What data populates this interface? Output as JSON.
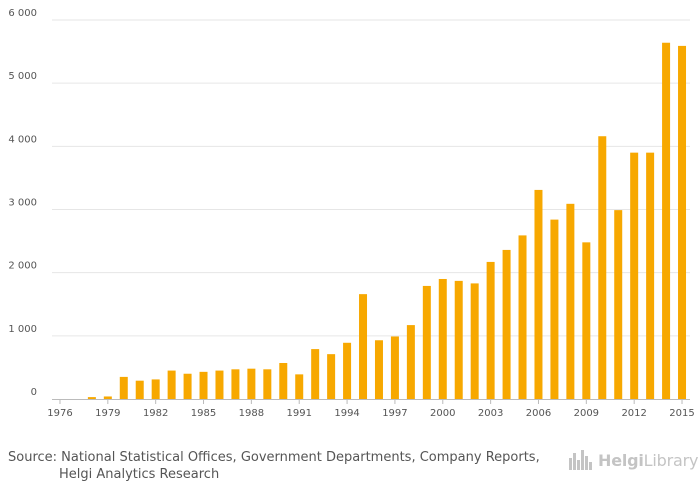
{
  "chart_data": {
    "type": "bar",
    "title": "",
    "xlabel": "",
    "ylabel": "",
    "ylim": [
      0,
      6000
    ],
    "yticks": [
      0,
      1000,
      2000,
      3000,
      4000,
      5000,
      6000
    ],
    "ytick_labels": [
      "0",
      "1 000",
      "2 000",
      "3 000",
      "4 000",
      "5 000",
      "6 000"
    ],
    "xtick_labels": [
      "1976",
      "1979",
      "1982",
      "1985",
      "1988",
      "1991",
      "1994",
      "1997",
      "2000",
      "2003",
      "2006",
      "2009",
      "2012",
      "2015"
    ],
    "grid": true,
    "bar_color": "#f7a800",
    "categories": [
      "1976",
      "1977",
      "1978",
      "1979",
      "1980",
      "1981",
      "1982",
      "1983",
      "1984",
      "1985",
      "1986",
      "1987",
      "1988",
      "1989",
      "1990",
      "1991",
      "1992",
      "1993",
      "1994",
      "1995",
      "1996",
      "1997",
      "1998",
      "1999",
      "2000",
      "2001",
      "2002",
      "2003",
      "2004",
      "2005",
      "2006",
      "2007",
      "2008",
      "2009",
      "2010",
      "2011",
      "2012",
      "2013",
      "2014",
      "2015"
    ],
    "values": [
      0,
      0,
      30,
      40,
      350,
      290,
      310,
      450,
      400,
      430,
      450,
      470,
      480,
      470,
      570,
      390,
      790,
      710,
      890,
      1660,
      930,
      990,
      1170,
      1790,
      1900,
      1870,
      1830,
      2170,
      2360,
      2590,
      3310,
      2840,
      3090,
      2480,
      4160,
      2990,
      3900,
      3900,
      5640,
      5590
    ]
  },
  "footer": {
    "source_line1": "Source: National Statistical Offices, Government Departments, Company Reports,",
    "source_line2": "Helgi Analytics Research",
    "logo_word1": "Helgi",
    "logo_word2": "Library"
  }
}
